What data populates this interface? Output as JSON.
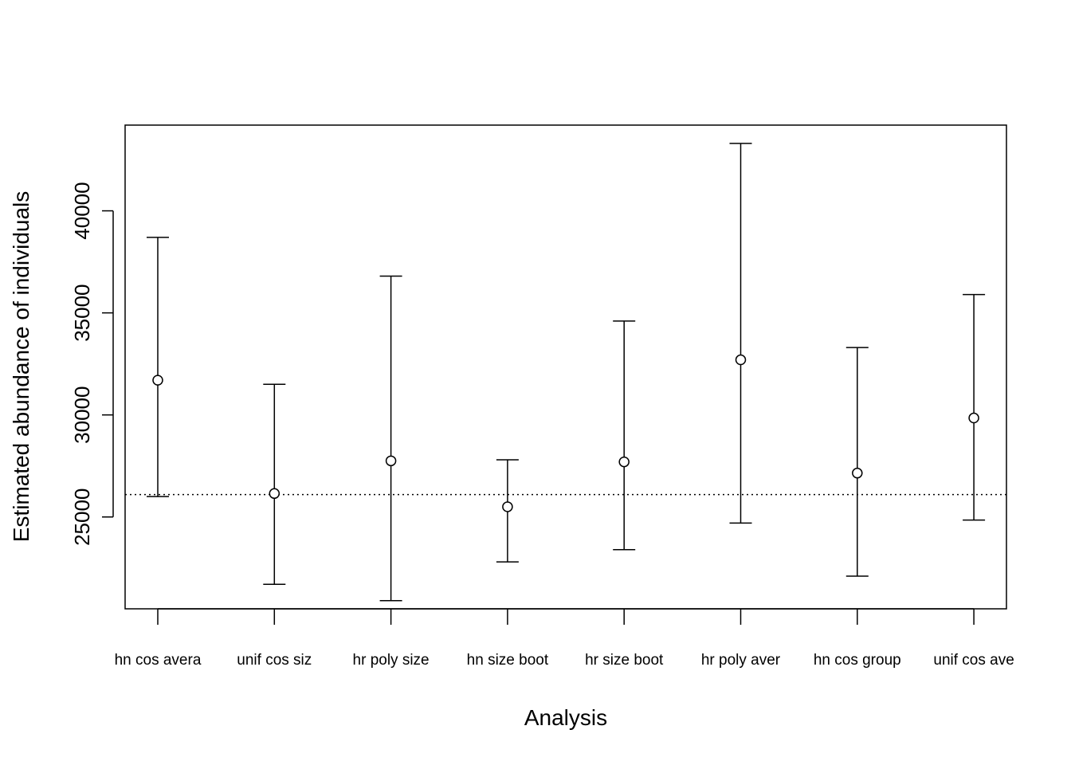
{
  "chart_data": {
    "type": "scatter",
    "title": "",
    "xlabel": "Analysis",
    "ylabel": "Estimated abundance of individuals",
    "categories": [
      "hn cos avera",
      "unif cos siz",
      "hr poly size",
      "hn size boot",
      "hr size boot",
      "hr poly aver",
      "hn cos group",
      "unif cos ave"
    ],
    "estimates": [
      31700,
      26150,
      27750,
      25500,
      27700,
      32700,
      27150,
      29850
    ],
    "lower": [
      26000,
      21700,
      20900,
      22800,
      23400,
      24700,
      22100,
      24850
    ],
    "upper": [
      38700,
      31500,
      36800,
      27800,
      34600,
      43300,
      33300,
      35900
    ],
    "reference_line": 26100,
    "ylim": [
      20500,
      44200
    ],
    "yticks": [
      25000,
      30000,
      35000,
      40000
    ],
    "grid": false,
    "legend": "none"
  }
}
